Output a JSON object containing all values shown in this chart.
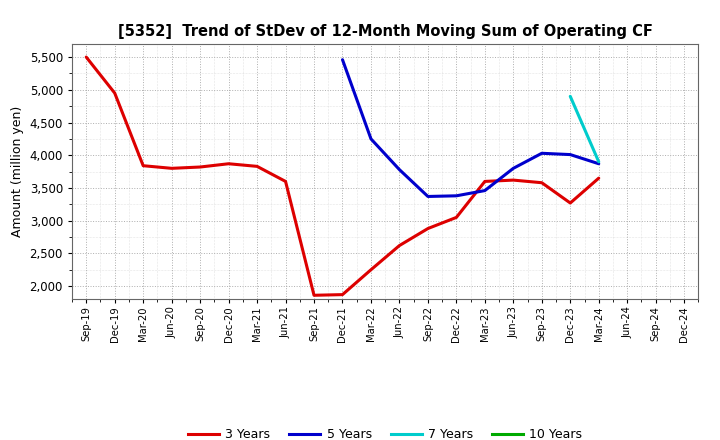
{
  "title": "[5352]  Trend of StDev of 12-Month Moving Sum of Operating CF",
  "ylabel": "Amount (million yen)",
  "background_color": "#ffffff",
  "grid_color": "#999999",
  "ylim": [
    1800,
    5700
  ],
  "yticks": [
    2000,
    2500,
    3000,
    3500,
    4000,
    4500,
    5000,
    5500
  ],
  "x_labels": [
    "Sep-19",
    "Dec-19",
    "Mar-20",
    "Jun-20",
    "Sep-20",
    "Dec-20",
    "Mar-21",
    "Jun-21",
    "Sep-21",
    "Dec-21",
    "Mar-22",
    "Jun-22",
    "Sep-22",
    "Dec-22",
    "Mar-23",
    "Jun-23",
    "Sep-23",
    "Dec-23",
    "Mar-24",
    "Jun-24",
    "Sep-24",
    "Dec-24"
  ],
  "series_3y": {
    "color": "#dd0000",
    "label": "3 Years",
    "x": [
      0,
      1,
      2,
      3,
      4,
      5,
      6,
      7,
      8,
      9,
      10,
      11,
      12,
      13,
      14,
      15,
      16,
      17,
      18
    ],
    "y": [
      5500,
      4950,
      3840,
      3800,
      3820,
      3870,
      3830,
      3600,
      1860,
      1870,
      2250,
      2620,
      2880,
      3050,
      3600,
      3620,
      3580,
      3270,
      3650
    ]
  },
  "series_5y": {
    "color": "#0000cc",
    "label": "5 Years",
    "x": [
      9,
      10,
      11,
      12,
      13,
      14,
      15,
      16,
      17,
      18
    ],
    "y": [
      5460,
      4250,
      3780,
      3370,
      3380,
      3460,
      3800,
      4030,
      4010,
      3870
    ]
  },
  "series_7y": {
    "color": "#00cccc",
    "label": "7 Years",
    "x": [
      17,
      18
    ],
    "y": [
      4900,
      3900
    ]
  },
  "series_10y": {
    "color": "#00aa00",
    "label": "10 Years",
    "x": [
      18
    ],
    "y": [
      3900
    ]
  },
  "linewidth": 2.2
}
